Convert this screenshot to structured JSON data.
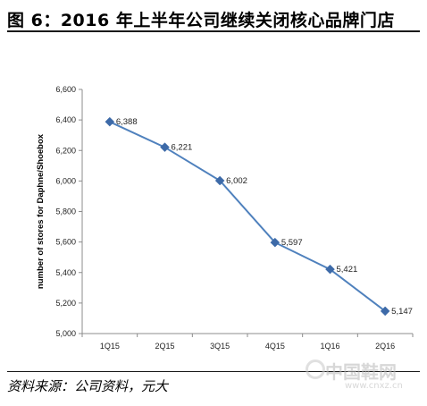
{
  "header": {
    "title": "图 6：2016 年上半年公司继续关闭核心品牌门店"
  },
  "source": {
    "text": "资料来源：公司资料，元大"
  },
  "watermark": {
    "text": "中国鞋网",
    "url": "www.cnxz.cn"
  },
  "chart_data": {
    "type": "line",
    "categories": [
      "1Q15",
      "2Q15",
      "3Q15",
      "4Q15",
      "1Q16",
      "2Q16"
    ],
    "series": [
      {
        "values": [
          6388,
          6221,
          6002,
          5597,
          5421,
          5147
        ]
      }
    ],
    "data_labels": [
      "6,388",
      "6,221",
      "6,002",
      "5,597",
      "5,421",
      "5,147"
    ],
    "ylabel": "number of stores for Daphne/Shoebox",
    "xlabel": "",
    "ylim": [
      5000,
      6600
    ],
    "yticks": [
      5000,
      5200,
      5400,
      5600,
      5800,
      6000,
      6200,
      6400,
      6600
    ],
    "ytick_labels": [
      "5,000",
      "5,200",
      "5,400",
      "5,600",
      "5,800",
      "6,000",
      "6,200",
      "6,400",
      "6,600"
    ],
    "grid": false,
    "legend": "none",
    "line_color": "#4f81bd",
    "marker_color": "#3d6aa8",
    "marker": "diamond"
  }
}
